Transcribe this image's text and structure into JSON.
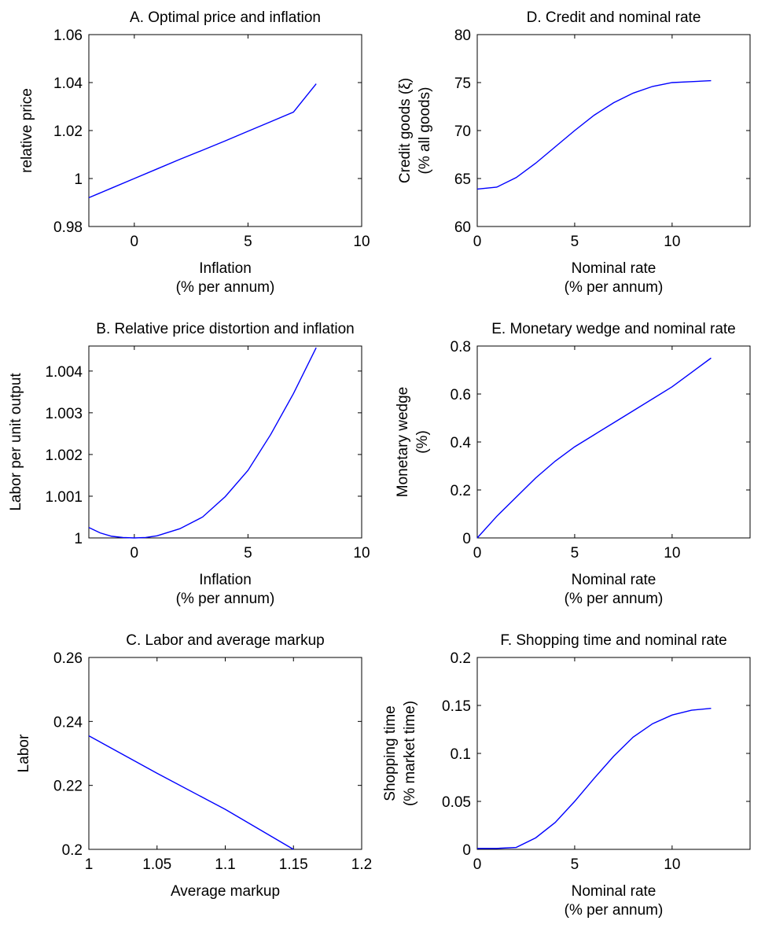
{
  "chart_data": [
    {
      "id": "A",
      "type": "line",
      "title": "A. Optimal price and inflation",
      "xlabel": [
        "Inflation",
        "(% per annum)"
      ],
      "ylabel": [
        "relative price"
      ],
      "xlim": [
        -2,
        10
      ],
      "ylim": [
        0.98,
        1.06
      ],
      "xticks": [
        0,
        5,
        10
      ],
      "xtick_labels": [
        "0",
        "5",
        "10"
      ],
      "yticks": [
        0.98,
        1.0,
        1.02,
        1.04,
        1.06
      ],
      "ytick_labels": [
        "0.98",
        "1",
        "1.02",
        "1.04",
        "1.06"
      ],
      "grid": false,
      "color": "#0000ff",
      "series": [
        {
          "x": [
            -2,
            -1,
            0,
            1,
            2,
            3,
            4,
            5,
            6,
            7,
            8
          ],
          "y": [
            0.992,
            0.996,
            1.0,
            1.004,
            1.008,
            1.0118,
            1.0157,
            1.0197,
            1.0237,
            1.0277,
            1.0395
          ]
        }
      ]
    },
    {
      "id": "B",
      "type": "line",
      "title": "B. Relative price distortion and inflation",
      "xlabel": [
        "Inflation",
        "(% per annum)"
      ],
      "ylabel": [
        "Labor per unit output"
      ],
      "xlim": [
        -2,
        10
      ],
      "ylim": [
        1.0,
        1.0046
      ],
      "xticks": [
        0,
        5,
        10
      ],
      "xtick_labels": [
        "0",
        "5",
        "10"
      ],
      "yticks": [
        1.0,
        1.001,
        1.002,
        1.003,
        1.004
      ],
      "ytick_labels": [
        "1",
        "1.001",
        "1.002",
        "1.003",
        "1.004"
      ],
      "grid": false,
      "color": "#0000ff",
      "series": [
        {
          "x": [
            -2,
            -1.5,
            -1,
            -0.5,
            0,
            0.5,
            1,
            2,
            3,
            4,
            5,
            6,
            7,
            8
          ],
          "y": [
            1.00025,
            1.00012,
            1.00004,
            1.00001,
            1.0,
            1.00001,
            1.00005,
            1.00022,
            1.0005,
            1.00099,
            1.00162,
            1.00248,
            1.00346,
            1.00456
          ]
        }
      ]
    },
    {
      "id": "C",
      "type": "line",
      "title": "C. Labor and average markup",
      "xlabel": [
        "Average markup"
      ],
      "ylabel": [
        "Labor"
      ],
      "xlim": [
        1.0,
        1.2
      ],
      "ylim": [
        0.2,
        0.26
      ],
      "xticks": [
        1.0,
        1.05,
        1.1,
        1.15,
        1.2
      ],
      "xtick_labels": [
        "1",
        "1.05",
        "1.1",
        "1.15",
        "1.2"
      ],
      "yticks": [
        0.2,
        0.22,
        0.24,
        0.26
      ],
      "ytick_labels": [
        "0.2",
        "0.22",
        "0.24",
        "0.26"
      ],
      "grid": false,
      "color": "#0000ff",
      "series": [
        {
          "x": [
            1.0,
            1.05,
            1.1,
            1.15
          ],
          "y": [
            0.2355,
            0.2238,
            0.2125,
            0.2
          ]
        }
      ]
    },
    {
      "id": "D",
      "type": "line",
      "title": "D. Credit and nominal rate",
      "xlabel": [
        "Nominal rate",
        "(% per annum)"
      ],
      "ylabel": [
        "Credit goods (ξ)",
        "(% all goods)"
      ],
      "xlim": [
        0,
        14
      ],
      "ylim": [
        60,
        80
      ],
      "xticks": [
        0,
        5,
        10
      ],
      "xtick_labels": [
        "0",
        "5",
        "10"
      ],
      "yticks": [
        60,
        65,
        70,
        75,
        80
      ],
      "ytick_labels": [
        "60",
        "65",
        "70",
        "75",
        "80"
      ],
      "grid": false,
      "color": "#0000ff",
      "series": [
        {
          "x": [
            0,
            1,
            2,
            3,
            4,
            5,
            6,
            7,
            8,
            9,
            10,
            11,
            12
          ],
          "y": [
            63.9,
            64.1,
            65.1,
            66.6,
            68.3,
            70.0,
            71.6,
            72.9,
            73.9,
            74.6,
            75.0,
            75.1,
            75.2
          ]
        }
      ]
    },
    {
      "id": "E",
      "type": "line",
      "title": "E. Monetary wedge and nominal rate",
      "xlabel": [
        "Nominal rate",
        "(% per annum)"
      ],
      "ylabel": [
        "Monetary wedge",
        "(%)"
      ],
      "xlim": [
        0,
        14
      ],
      "ylim": [
        0,
        0.8
      ],
      "xticks": [
        0,
        5,
        10
      ],
      "xtick_labels": [
        "0",
        "5",
        "10"
      ],
      "yticks": [
        0,
        0.2,
        0.4,
        0.6,
        0.8
      ],
      "ytick_labels": [
        "0",
        "0.2",
        "0.4",
        "0.6",
        "0.8"
      ],
      "grid": false,
      "color": "#0000ff",
      "series": [
        {
          "x": [
            0,
            1,
            2,
            3,
            4,
            5,
            6,
            7,
            8,
            9,
            10,
            11,
            12
          ],
          "y": [
            0.0,
            0.09,
            0.17,
            0.25,
            0.32,
            0.38,
            0.43,
            0.48,
            0.53,
            0.58,
            0.63,
            0.69,
            0.75
          ]
        }
      ]
    },
    {
      "id": "F",
      "type": "line",
      "title": "F. Shopping time and nominal rate",
      "xlabel": [
        "Nominal rate",
        "(% per annum)"
      ],
      "ylabel": [
        "Shopping time",
        "(% market time)"
      ],
      "xlim": [
        0,
        14
      ],
      "ylim": [
        0,
        0.2
      ],
      "xticks": [
        0,
        5,
        10
      ],
      "xtick_labels": [
        "0",
        "5",
        "10"
      ],
      "yticks": [
        0,
        0.05,
        0.1,
        0.15,
        0.2
      ],
      "ytick_labels": [
        "0",
        "0.05",
        "0.1",
        "0.15",
        "0.2"
      ],
      "grid": false,
      "color": "#0000ff",
      "series": [
        {
          "x": [
            0,
            1,
            2,
            3,
            4,
            5,
            6,
            7,
            8,
            9,
            10,
            11,
            12
          ],
          "y": [
            0.001,
            0.001,
            0.002,
            0.012,
            0.028,
            0.05,
            0.074,
            0.097,
            0.117,
            0.131,
            0.14,
            0.145,
            0.147
          ]
        }
      ]
    }
  ]
}
